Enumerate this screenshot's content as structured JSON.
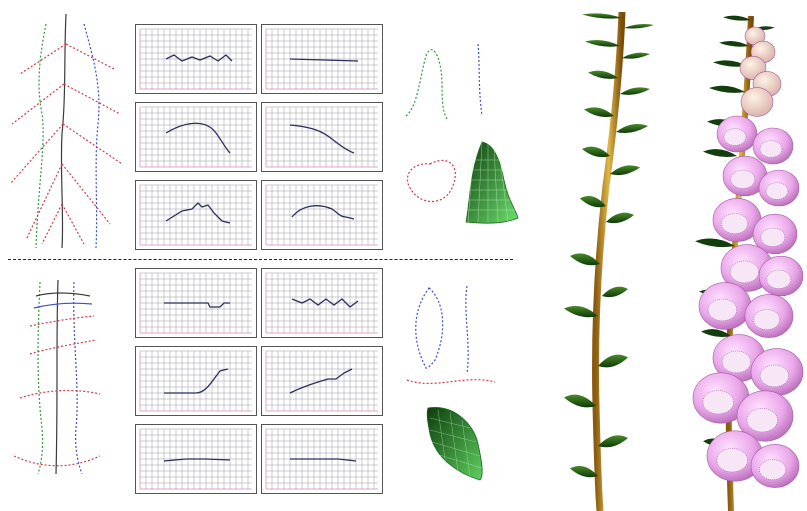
{
  "figure": {
    "description_sections": [
      "top-leaf-construction",
      "bottom-petal-construction",
      "rendered-plants"
    ],
    "colors": {
      "curve_red": "#d23a4a",
      "curve_blue": "#3c4fd0",
      "curve_green": "#2f9a3a",
      "plot_line": "#2b2f5a",
      "grid": "#9a9aa6",
      "grid_axis_pink": "#c94a9a",
      "stem": "#c49a2a",
      "leaf": "#1e5a14",
      "flower": "#e6a6e6",
      "mesh_green": "#2fa82f"
    },
    "top_plots": [
      {
        "name": "plot-1",
        "shape": "flat-noisy"
      },
      {
        "name": "plot-2",
        "shape": "flat"
      },
      {
        "name": "plot-3",
        "shape": "hump-down"
      },
      {
        "name": "plot-4",
        "shape": "descending"
      },
      {
        "name": "plot-5",
        "shape": "peak"
      },
      {
        "name": "plot-6",
        "shape": "plateau"
      }
    ],
    "bottom_plots": [
      {
        "name": "plot-7",
        "shape": "flat-dip"
      },
      {
        "name": "plot-8",
        "shape": "noisy"
      },
      {
        "name": "plot-9",
        "shape": "rise-end"
      },
      {
        "name": "plot-10",
        "shape": "rise"
      },
      {
        "name": "plot-11",
        "shape": "flat"
      },
      {
        "name": "plot-12",
        "shape": "flat"
      }
    ]
  }
}
